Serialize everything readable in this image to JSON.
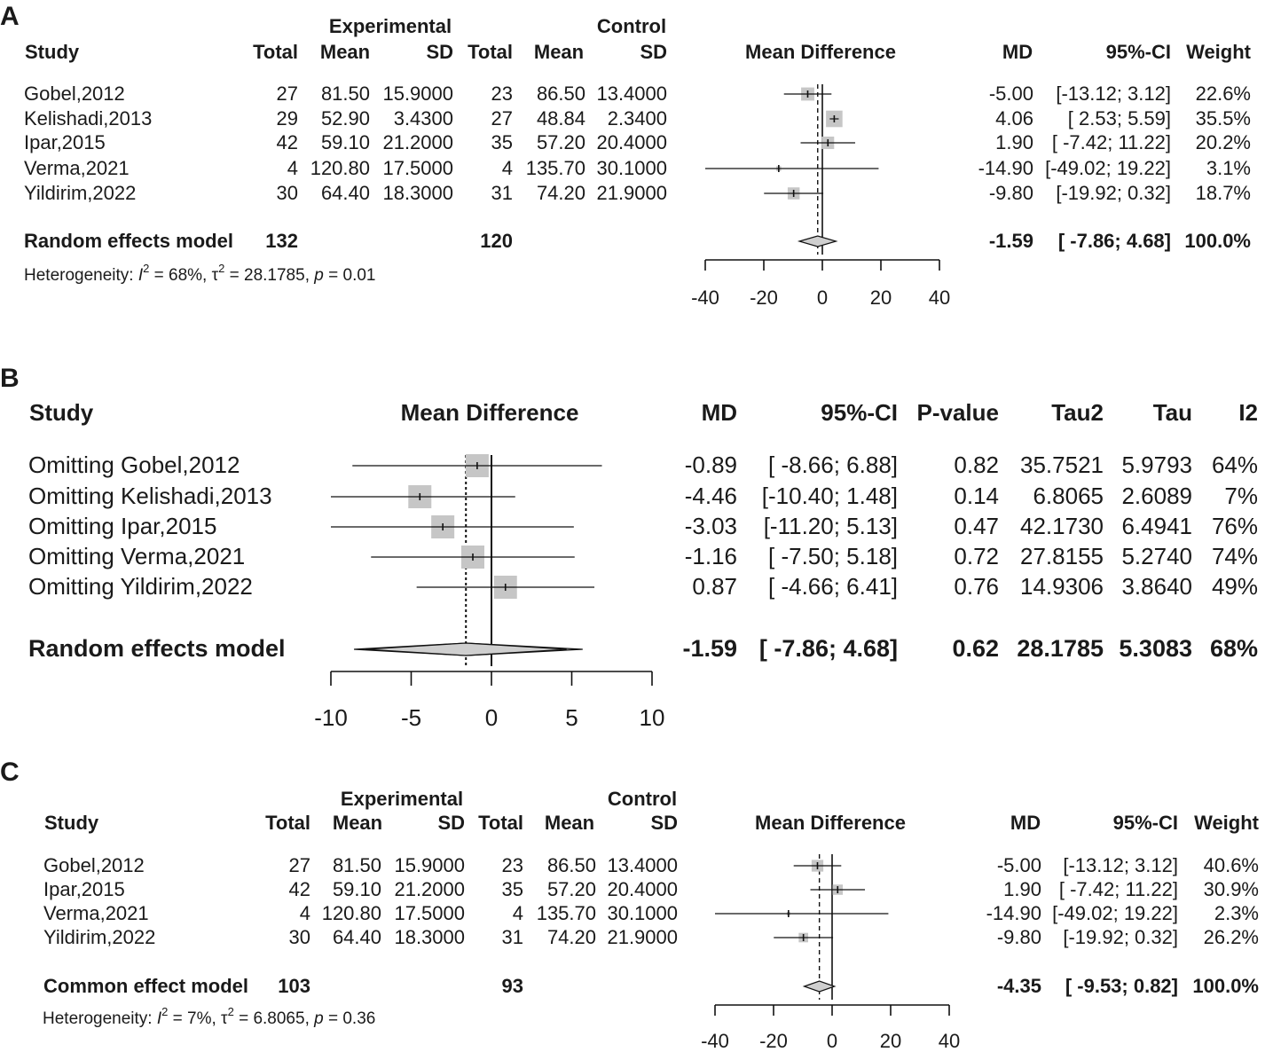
{
  "colors": {
    "box": "#c6c6c6",
    "line": "#111111",
    "diamond": "#cfcfcf"
  },
  "chart_data": [
    {
      "type": "forest",
      "panel_label": "A",
      "group_headers": [
        "Experimental",
        "Control"
      ],
      "columns": [
        "Study",
        "Total",
        "Mean",
        "SD",
        "Total",
        "Mean",
        "SD",
        "Mean Difference",
        "MD",
        "95%-CI",
        "Weight"
      ],
      "xlim": [
        -40,
        40
      ],
      "x_ticks": [
        -40,
        -20,
        0,
        20,
        40
      ],
      "x_tick_labels": [
        "-40",
        "-20",
        "0",
        "20",
        "40"
      ],
      "studies": [
        {
          "study": "Gobel,2012",
          "e_total": "27",
          "e_mean": "81.50",
          "e_sd": "15.9000",
          "c_total": "23",
          "c_mean": "86.50",
          "c_sd": "13.4000",
          "md_text": "-5.00",
          "ci_text": "[-13.12; 3.12]",
          "weight_text": "22.6%",
          "md": -5.0,
          "lo": -13.12,
          "hi": 3.12,
          "weight": 22.6
        },
        {
          "study": "Kelishadi,2013",
          "e_total": "29",
          "e_mean": "52.90",
          "e_sd": "3.4300",
          "c_total": "27",
          "c_mean": "48.84",
          "c_sd": "2.3400",
          "md_text": "4.06",
          "ci_text": "[ 2.53; 5.59]",
          "weight_text": "35.5%",
          "md": 4.06,
          "lo": 2.53,
          "hi": 5.59,
          "weight": 35.5
        },
        {
          "study": "Ipar,2015",
          "e_total": "42",
          "e_mean": "59.10",
          "e_sd": "21.2000",
          "c_total": "35",
          "c_mean": "57.20",
          "c_sd": "20.4000",
          "md_text": "1.90",
          "ci_text": "[ -7.42; 11.22]",
          "weight_text": "20.2%",
          "md": 1.9,
          "lo": -7.42,
          "hi": 11.22,
          "weight": 20.2
        },
        {
          "study": "Verma,2021",
          "e_total": "4",
          "e_mean": "120.80",
          "e_sd": "17.5000",
          "c_total": "4",
          "c_mean": "135.70",
          "c_sd": "30.1000",
          "md_text": "-14.90",
          "ci_text": "[-49.02; 19.22]",
          "weight_text": "3.1%",
          "md": -14.9,
          "lo": -49.02,
          "hi": 19.22,
          "weight": 3.1
        },
        {
          "study": "Yildirim,2022",
          "e_total": "30",
          "e_mean": "64.40",
          "e_sd": "18.3000",
          "c_total": "31",
          "c_mean": "74.20",
          "c_sd": "21.9000",
          "md_text": "-9.80",
          "ci_text": "[-19.92; 0.32]",
          "weight_text": "18.7%",
          "md": -9.8,
          "lo": -19.92,
          "hi": 0.32,
          "weight": 18.7
        }
      ],
      "pooled": {
        "label": "Random effects model",
        "e_total": "132",
        "c_total": "120",
        "md_text": "-1.59",
        "ci_text": "[ -7.86; 4.68]",
        "weight_text": "100.0%",
        "md": -1.59,
        "lo": -7.86,
        "hi": 4.68
      },
      "heterogeneity": {
        "prefix": "Heterogeneity: ",
        "I": "I",
        "sup2": "2",
        "i2_rest": " = 68%, τ",
        "tau_sup": "2",
        "rest": " = 28.1785, ",
        "p": "p",
        "p_rest": " = 0.01"
      }
    },
    {
      "type": "forest",
      "panel_label": "B",
      "columns": [
        "Study",
        "Mean Difference",
        "MD",
        "95%-CI",
        "P-value",
        "Tau2",
        "Tau",
        "I2"
      ],
      "xlim": [
        -10,
        10
      ],
      "x_ticks": [
        -10,
        -5,
        0,
        5,
        10
      ],
      "x_tick_labels": [
        "-10",
        "-5",
        "0",
        "5",
        "10"
      ],
      "studies": [
        {
          "study": "Omitting Gobel,2012",
          "md_text": "-0.89",
          "ci_text": "[ -8.66; 6.88]",
          "p_text": "0.82",
          "tau2_text": "35.7521",
          "tau_text": "5.9793",
          "i2_text": "64%",
          "md": -0.89,
          "lo": -8.66,
          "hi": 6.88
        },
        {
          "study": "Omitting Kelishadi,2013",
          "md_text": "-4.46",
          "ci_text": "[-10.40; 1.48]",
          "p_text": "0.14",
          "tau2_text": "6.8065",
          "tau_text": "2.6089",
          "i2_text": "7%",
          "md": -4.46,
          "lo": -10.4,
          "hi": 1.48
        },
        {
          "study": "Omitting Ipar,2015",
          "md_text": "-3.03",
          "ci_text": "[-11.20; 5.13]",
          "p_text": "0.47",
          "tau2_text": "42.1730",
          "tau_text": "6.4941",
          "i2_text": "76%",
          "md": -3.03,
          "lo": -11.2,
          "hi": 5.13
        },
        {
          "study": "Omitting Verma,2021",
          "md_text": "-1.16",
          "ci_text": "[ -7.50; 5.18]",
          "p_text": "0.72",
          "tau2_text": "27.8155",
          "tau_text": "5.2740",
          "i2_text": "74%",
          "md": -1.16,
          "lo": -7.5,
          "hi": 5.18
        },
        {
          "study": "Omitting Yildirim,2022",
          "md_text": "0.87",
          "ci_text": "[ -4.66; 6.41]",
          "p_text": "0.76",
          "tau2_text": "14.9306",
          "tau_text": "3.8640",
          "i2_text": "49%",
          "md": 0.87,
          "lo": -4.66,
          "hi": 6.41
        }
      ],
      "pooled": {
        "label": "Random effects model",
        "md_text": "-1.59",
        "ci_text": "[ -7.86; 4.68]",
        "p_text": "0.62",
        "tau2_text": "28.1785",
        "tau_text": "5.3083",
        "i2_text": "68%",
        "md": -1.59,
        "lo": -7.86,
        "hi": 4.68
      }
    },
    {
      "type": "forest",
      "panel_label": "C",
      "group_headers": [
        "Experimental",
        "Control"
      ],
      "columns": [
        "Study",
        "Total",
        "Mean",
        "SD",
        "Total",
        "Mean",
        "SD",
        "Mean Difference",
        "MD",
        "95%-CI",
        "Weight"
      ],
      "xlim": [
        -40,
        40
      ],
      "x_ticks": [
        -40,
        -20,
        0,
        20,
        40
      ],
      "x_tick_labels": [
        "-40",
        "-20",
        "0",
        "20",
        "40"
      ],
      "studies": [
        {
          "study": "Gobel,2012",
          "e_total": "27",
          "e_mean": "81.50",
          "e_sd": "15.9000",
          "c_total": "23",
          "c_mean": "86.50",
          "c_sd": "13.4000",
          "md_text": "-5.00",
          "ci_text": "[-13.12; 3.12]",
          "weight_text": "40.6%",
          "md": -5.0,
          "lo": -13.12,
          "hi": 3.12,
          "weight": 40.6
        },
        {
          "study": "Ipar,2015",
          "e_total": "42",
          "e_mean": "59.10",
          "e_sd": "21.2000",
          "c_total": "35",
          "c_mean": "57.20",
          "c_sd": "20.4000",
          "md_text": "1.90",
          "ci_text": "[ -7.42; 11.22]",
          "weight_text": "30.9%",
          "md": 1.9,
          "lo": -7.42,
          "hi": 11.22,
          "weight": 30.9
        },
        {
          "study": "Verma,2021",
          "e_total": "4",
          "e_mean": "120.80",
          "e_sd": "17.5000",
          "c_total": "4",
          "c_mean": "135.70",
          "c_sd": "30.1000",
          "md_text": "-14.90",
          "ci_text": "[-49.02; 19.22]",
          "weight_text": "2.3%",
          "md": -14.9,
          "lo": -49.02,
          "hi": 19.22,
          "weight": 2.3
        },
        {
          "study": "Yildirim,2022",
          "e_total": "30",
          "e_mean": "64.40",
          "e_sd": "18.3000",
          "c_total": "31",
          "c_mean": "74.20",
          "c_sd": "21.9000",
          "md_text": "-9.80",
          "ci_text": "[-19.92; 0.32]",
          "weight_text": "26.2%",
          "md": -9.8,
          "lo": -19.92,
          "hi": 0.32,
          "weight": 26.2
        }
      ],
      "pooled": {
        "label": "Common effect model",
        "e_total": "103",
        "c_total": "93",
        "md_text": "-4.35",
        "ci_text": "[ -9.53; 0.82]",
        "weight_text": "100.0%",
        "md": -4.35,
        "lo": -9.53,
        "hi": 0.82
      },
      "heterogeneity": {
        "prefix": "Heterogeneity: ",
        "I": "I",
        "sup2": "2",
        "i2_rest": " = 7%, τ",
        "tau_sup": "2",
        "rest": " = 6.8065, ",
        "p": "p",
        "p_rest": " = 0.36"
      }
    }
  ]
}
